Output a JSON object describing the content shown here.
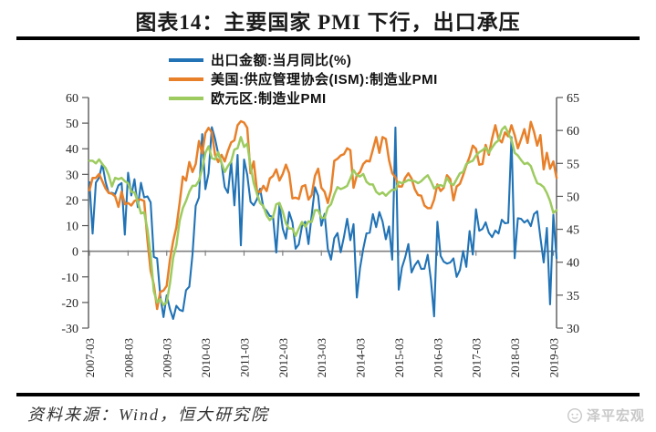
{
  "page": {
    "title": "图表14：主要国家 PMI 下行，出口承压",
    "source_note": "资料来源：Wind，恒大研究院",
    "watermark": {
      "label": "泽平宏观",
      "icon": "zeping-macro-logo",
      "color": "#c8c8c8"
    }
  },
  "chart_data": {
    "type": "line",
    "x_frequency": "monthly",
    "x_start": "2007-03",
    "x_end": "2019-04",
    "x_tick_labels": [
      "2007-03",
      "2008-03",
      "2009-03",
      "2010-03",
      "2011-03",
      "2012-03",
      "2013-03",
      "2014-03",
      "2015-03",
      "2016-03",
      "2017-03",
      "2018-03",
      "2019-03"
    ],
    "x_tick_interval_months": 12,
    "left_axis": {
      "min": -30,
      "max": 60,
      "ticks": [
        60,
        50,
        40,
        30,
        20,
        10,
        0,
        -10,
        -20,
        -30
      ]
    },
    "right_axis": {
      "min": 30,
      "max": 65,
      "ticks": [
        65,
        60,
        55,
        50,
        45,
        40,
        35,
        30
      ]
    },
    "grid": "none",
    "zero_line": true,
    "legend_position": "top-center",
    "axis_line_color": "#595959",
    "zero_line_color": "#7f7f7f",
    "series": [
      {
        "name": "出口金额:当月同比(%)",
        "axis": "left",
        "color": "#2173b6",
        "line_width": 2.1,
        "values": [
          27,
          6.9,
          26.8,
          28.7,
          34.2,
          27.1,
          22.7,
          22.8,
          22.3,
          25.7,
          26.6,
          6.5,
          30.6,
          21.8,
          28.1,
          17.2,
          26.7,
          21,
          21.4,
          19.1,
          -2.2,
          -2.8,
          -17.5,
          -25.7,
          -17.2,
          -22.6,
          -26.4,
          -21.3,
          -22.9,
          -23.4,
          -15.2,
          -13.8,
          -1.2,
          17.7,
          21,
          45.7,
          24.2,
          30.4,
          48.4,
          43.9,
          38,
          34.3,
          25.1,
          22.8,
          34.9,
          17.9,
          37.6,
          2.3,
          35.8,
          29.8,
          19.3,
          17.9,
          20.3,
          24.4,
          17,
          15.8,
          13.8,
          13.4,
          -0.5,
          18.3,
          8.8,
          4.9,
          15.3,
          11.3,
          1,
          2.7,
          9.8,
          11.5,
          2.8,
          14,
          25,
          21.7,
          10,
          14.6,
          0.9,
          -3.3,
          5.1,
          7.1,
          -0.4,
          5.6,
          12.7,
          4.3,
          10.6,
          -18.1,
          -6.6,
          0.9,
          7,
          7.2,
          14.5,
          9.4,
          15.3,
          11.6,
          4.7,
          9.7,
          -3.3,
          48.3,
          -15,
          -6.4,
          -2.5,
          2.8,
          -8.3,
          -5.5,
          -3.7,
          -6.9,
          -6.8,
          -1.4,
          -11.2,
          -25.4,
          11.5,
          -1.8,
          -4.1,
          -4.8,
          -4.4,
          -2.8,
          -10,
          -7.3,
          0.1,
          -6.1,
          7.9,
          -1.3,
          16.4,
          8,
          8.7,
          11.3,
          7.2,
          5.5,
          8.1,
          6.9,
          12.3,
          10.9,
          11.1,
          44.5,
          -2.7,
          12.9,
          12.6,
          11.2,
          12.2,
          9.8,
          14.5,
          15.6,
          5.4,
          -4.4,
          9.1,
          -20.7,
          14.2,
          -2.7
        ]
      },
      {
        "name": "美国:供应管理协会(ISM):制造业PMI",
        "axis": "right",
        "color": "#e8802a",
        "line_width": 2.5,
        "values": [
          50.9,
          52.8,
          52.8,
          53.4,
          52.3,
          51.2,
          50.5,
          50.4,
          50,
          48.4,
          50.7,
          48.8,
          49,
          48.6,
          49.3,
          49.5,
          49.5,
          49.3,
          43.4,
          38.7,
          36.6,
          32.9,
          35.5,
          35.7,
          36.4,
          40.4,
          43.2,
          45.3,
          49,
          53,
          52.4,
          55.2,
          53.7,
          54.9,
          58.4,
          56.5,
          59.6,
          60.4,
          59.7,
          56.3,
          55.2,
          56.3,
          55.3,
          56.9,
          58.2,
          58.5,
          60.8,
          61.4,
          61.2,
          60.4,
          53.5,
          55.3,
          50.9,
          50.6,
          51.6,
          50.8,
          52.7,
          53.1,
          54.1,
          52.4,
          53.4,
          54.8,
          53.5,
          49.7,
          49.8,
          49.6,
          51.5,
          51.7,
          49.5,
          50.2,
          53.1,
          54.2,
          51.3,
          50.7,
          49,
          50.9,
          55.4,
          55.7,
          56.2,
          56.4,
          57.3,
          57,
          51.3,
          53.2,
          53.7,
          54.9,
          55.4,
          55.3,
          57.1,
          59,
          56.6,
          59,
          58.7,
          55.5,
          53.5,
          52.9,
          51.5,
          51.5,
          52.8,
          53.5,
          52.7,
          51.1,
          50.2,
          50.1,
          48.6,
          48.2,
          48.2,
          49.5,
          51.8,
          50.8,
          51.3,
          53.2,
          52.6,
          49.4,
          51.5,
          51.9,
          53.2,
          54.7,
          56,
          57.7,
          57.2,
          54.8,
          54.9,
          57.8,
          56.3,
          58.8,
          60.8,
          58.7,
          58.2,
          59.7,
          59.1,
          60.8,
          59.3,
          57.3,
          58.7,
          60.2,
          58.1,
          61.3,
          59.8,
          57.7,
          59.3,
          54.1,
          56.6,
          54.2,
          55.3,
          52.8
        ]
      },
      {
        "name": "欧元区:制造业PMI",
        "axis": "right",
        "color": "#9dcb5f",
        "line_width": 2.5,
        "values": [
          55.4,
          55.4,
          55,
          55.6,
          54.9,
          54.3,
          53.2,
          51.5,
          52.8,
          52.6,
          52.8,
          52.3,
          52,
          50.7,
          50.6,
          49.2,
          47.4,
          47.6,
          45,
          41.1,
          35.6,
          33.9,
          34.4,
          33.5,
          33.9,
          36.8,
          40.7,
          42.6,
          46.3,
          48.2,
          49.3,
          50.7,
          51.6,
          51.6,
          52.4,
          54.2,
          56.6,
          57.6,
          55.8,
          55.6,
          56.7,
          55.1,
          53.7,
          54.6,
          55.3,
          57.1,
          57.3,
          59,
          57.5,
          58,
          54.6,
          52,
          50.4,
          49,
          48.5,
          47.1,
          46.4,
          46.9,
          48.8,
          49,
          47.7,
          45.9,
          45.1,
          45.1,
          44,
          45.1,
          46.1,
          45.4,
          46.2,
          46.1,
          47.9,
          47.9,
          46.8,
          46.7,
          48.3,
          48.8,
          50.3,
          51.4,
          51.1,
          51.3,
          51.6,
          52.7,
          54,
          53.2,
          53,
          53.4,
          52.2,
          51.8,
          51.8,
          50.7,
          50.3,
          50.6,
          50.1,
          50.6,
          51,
          51,
          52.2,
          52,
          52.2,
          52.5,
          52.4,
          52.3,
          52,
          52.3,
          52.8,
          53.2,
          52.3,
          51.2,
          51.6,
          51.7,
          51.5,
          52.8,
          52,
          51.7,
          52.6,
          53.5,
          53.7,
          54.9,
          55.2,
          55.4,
          56.2,
          56.7,
          57,
          57.4,
          56.6,
          57.4,
          58.1,
          58.5,
          60.1,
          60.6,
          59.6,
          58.6,
          56.6,
          56.2,
          55.5,
          54.9,
          55.1,
          54.6,
          53.2,
          52,
          51.8,
          51.4,
          50.5,
          49.3,
          47.5,
          47.9
        ]
      }
    ]
  }
}
